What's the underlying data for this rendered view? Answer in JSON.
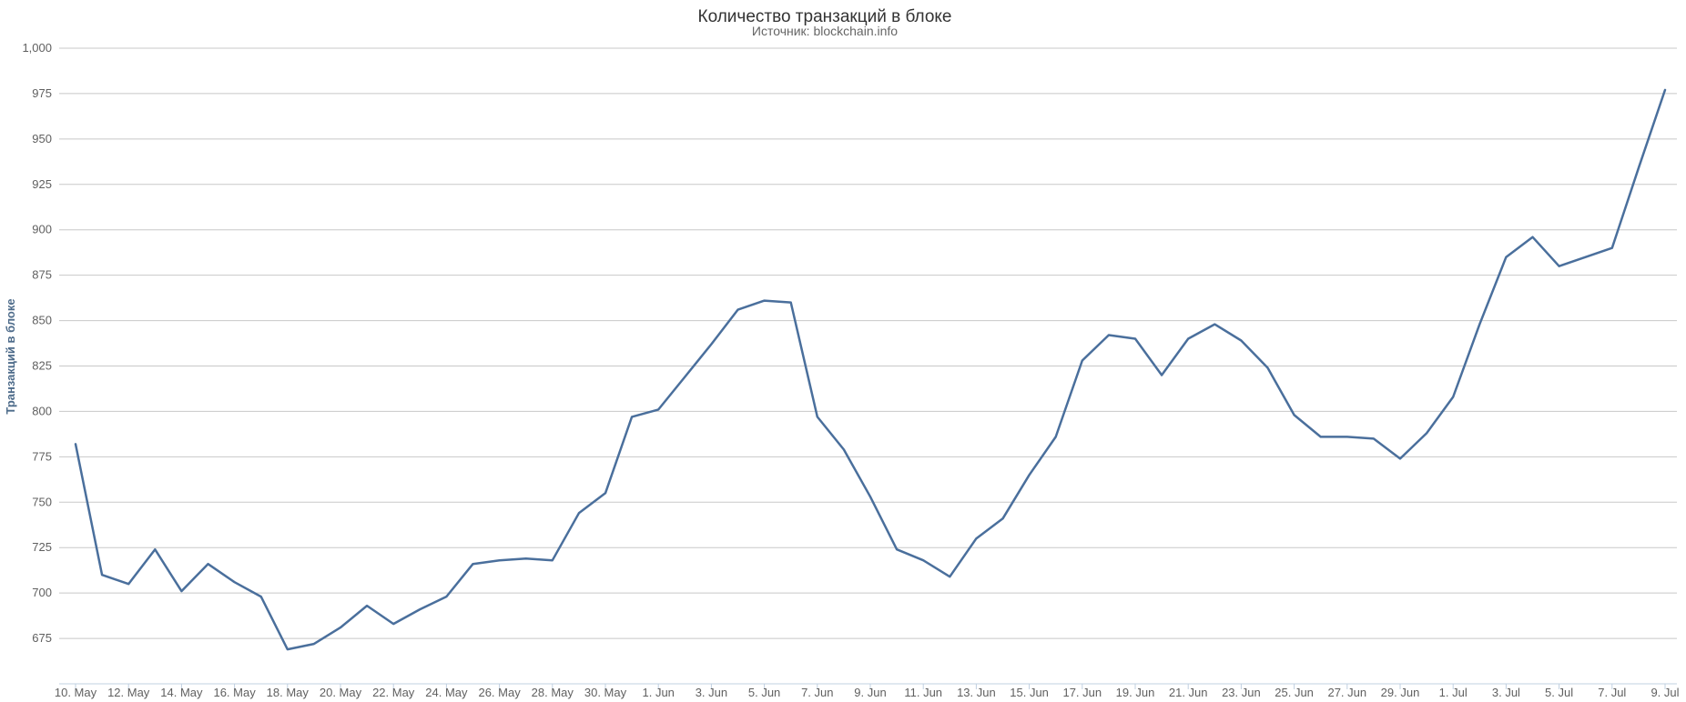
{
  "chart_data": {
    "type": "line",
    "title": "Количество транзакций в блоке",
    "subtitle": "Источник: blockchain.info",
    "ylabel": "Транзакций в блоке",
    "xlabel": "",
    "ylim": [
      650,
      1000
    ],
    "yticks": [
      675,
      700,
      725,
      750,
      775,
      800,
      825,
      850,
      875,
      900,
      925,
      950,
      975,
      1000
    ],
    "ytick_labels": [
      "675",
      "700",
      "725",
      "750",
      "775",
      "800",
      "825",
      "850",
      "875",
      "900",
      "925",
      "950",
      "975",
      "1,000"
    ],
    "x_start": "2016-05-10",
    "xtick_labels": [
      "10. May",
      "12. May",
      "14. May",
      "16. May",
      "18. May",
      "20. May",
      "22. May",
      "24. May",
      "26. May",
      "28. May",
      "30. May",
      "1. Jun",
      "3. Jun",
      "5. Jun",
      "7. Jun",
      "9. Jun",
      "11. Jun",
      "13. Jun",
      "15. Jun",
      "17. Jun",
      "19. Jun",
      "21. Jun",
      "23. Jun",
      "25. Jun",
      "27. Jun",
      "29. Jun",
      "1. Jul",
      "3. Jul",
      "5. Jul",
      "7. Jul",
      "9. Jul"
    ],
    "grid": true,
    "legend": "none",
    "series": [
      {
        "color": "#4a6f9c",
        "values": [
          782,
          710,
          705,
          724,
          701,
          716,
          706,
          698,
          669,
          672,
          681,
          693,
          683,
          691,
          698,
          716,
          718,
          719,
          718,
          744,
          755,
          797,
          801,
          819,
          837,
          856,
          861,
          860,
          797,
          779,
          753,
          724,
          718,
          709,
          730,
          741,
          765,
          786,
          828,
          842,
          840,
          820,
          840,
          848,
          839,
          824,
          798,
          786,
          786,
          785,
          774,
          788,
          808,
          848,
          885,
          896,
          880,
          885,
          890,
          934,
          977
        ]
      }
    ]
  }
}
